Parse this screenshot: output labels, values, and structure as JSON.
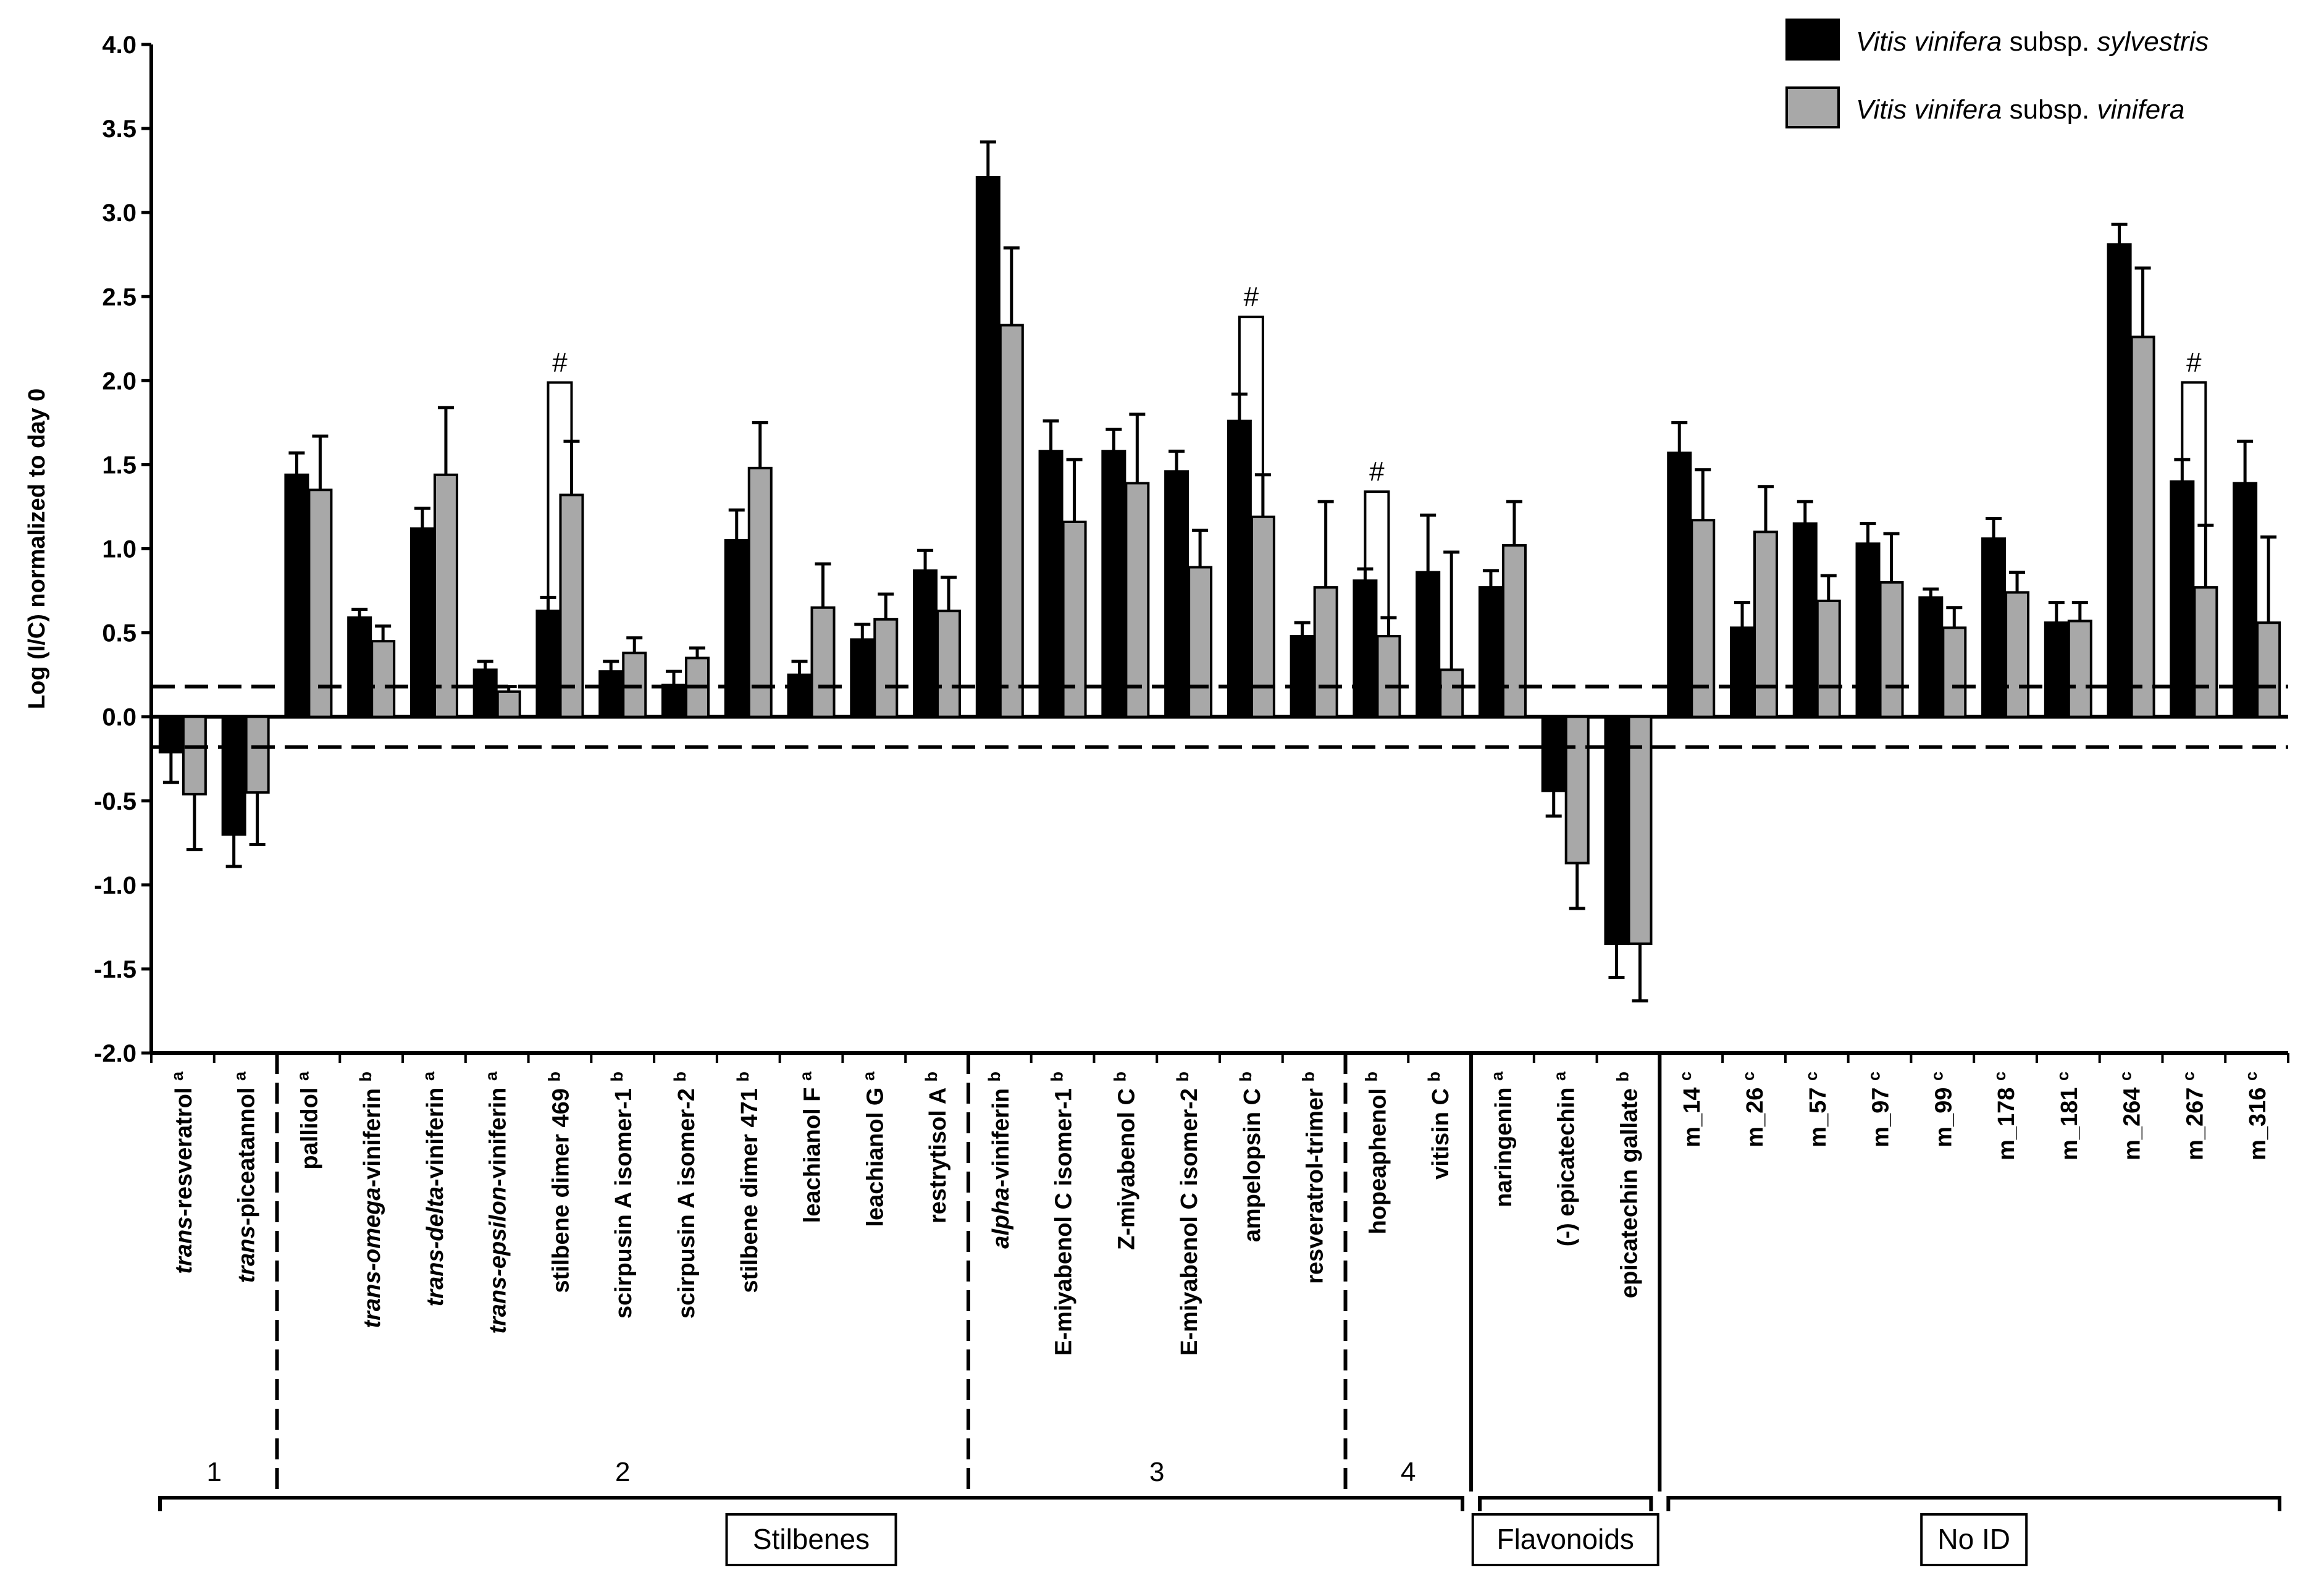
{
  "chart_data": {
    "type": "bar",
    "ylabel": "Log (I/C) normalized to day 0",
    "ylim": [
      -2.0,
      4.0
    ],
    "yticks": [
      "4.0",
      "3.5",
      "3.0",
      "2.5",
      "2.0",
      "1.5",
      "1.0",
      "0.5",
      "0.0",
      "-0.5",
      "-1.0",
      "-1.5",
      "-2.0"
    ],
    "threshold_lines": [
      0.18,
      -0.18
    ],
    "series": [
      {
        "name_italic": "Vitis vinifera",
        "name_rest": " subsp. ",
        "name_italic2": "sylvestris",
        "color": "#000000"
      },
      {
        "name_italic": "Vitis vinifera",
        "name_rest": " subsp. ",
        "name_italic2": "vinifera",
        "color": "#a8a8a8"
      }
    ],
    "categories": [
      {
        "pre": "trans",
        "main": "-resveratrol",
        "sup": "a",
        "values": [
          -0.21,
          -0.46
        ],
        "errors": [
          0.18,
          0.33
        ]
      },
      {
        "pre": "trans",
        "main": "-piceatannol",
        "sup": "a",
        "values": [
          -0.7,
          -0.45
        ],
        "errors": [
          0.19,
          0.31
        ]
      },
      {
        "pre": "",
        "main": "pallidol",
        "sup": "a",
        "values": [
          1.44,
          1.35
        ],
        "errors": [
          0.13,
          0.32
        ]
      },
      {
        "pre": "trans-omega",
        "main": "-viniferin",
        "sup": "b",
        "values": [
          0.59,
          0.45
        ],
        "errors": [
          0.05,
          0.09
        ]
      },
      {
        "pre": "trans-delta",
        "main": "-viniferin",
        "sup": "a",
        "values": [
          1.12,
          1.44
        ],
        "errors": [
          0.12,
          0.4
        ]
      },
      {
        "pre": "trans-epsilon",
        "main": "-viniferin",
        "sup": "a",
        "values": [
          0.28,
          0.15
        ],
        "errors": [
          0.05,
          0.03
        ]
      },
      {
        "pre": "",
        "main": "stilbene dimer 469",
        "sup": "b",
        "values": [
          0.63,
          1.32
        ],
        "errors": [
          0.08,
          0.32
        ],
        "hash": true
      },
      {
        "pre": "",
        "main": "scirpusin A isomer-1",
        "sup": "b",
        "values": [
          0.27,
          0.38
        ],
        "errors": [
          0.06,
          0.09
        ]
      },
      {
        "pre": "",
        "main": "scirpusin A isomer-2",
        "sup": "b",
        "values": [
          0.19,
          0.35
        ],
        "errors": [
          0.08,
          0.06
        ]
      },
      {
        "pre": "",
        "main": "stilbene dimer 471",
        "sup": "b",
        "values": [
          1.05,
          1.48
        ],
        "errors": [
          0.18,
          0.27
        ]
      },
      {
        "pre": "",
        "main": "leachianol F",
        "sup": "a",
        "values": [
          0.25,
          0.65
        ],
        "errors": [
          0.08,
          0.26
        ]
      },
      {
        "pre": "",
        "main": "leachianol G",
        "sup": "a",
        "values": [
          0.46,
          0.58
        ],
        "errors": [
          0.09,
          0.15
        ]
      },
      {
        "pre": "",
        "main": "restrytisol A",
        "sup": "b",
        "values": [
          0.87,
          0.63
        ],
        "errors": [
          0.12,
          0.2
        ]
      },
      {
        "pre": "alpha",
        "main": "-viniferin",
        "sup": "b",
        "values": [
          3.21,
          2.33
        ],
        "errors": [
          0.21,
          0.46
        ]
      },
      {
        "pre": "",
        "main": "E-miyabenol C isomer-1",
        "sup": "b",
        "values": [
          1.58,
          1.16
        ],
        "errors": [
          0.18,
          0.37
        ]
      },
      {
        "pre": "",
        "main": "Z-miyabenol C",
        "sup": "b",
        "values": [
          1.58,
          1.39
        ],
        "errors": [
          0.13,
          0.41
        ]
      },
      {
        "pre": "",
        "main": "E-miyabenol C isomer-2",
        "sup": "b",
        "values": [
          1.46,
          0.89
        ],
        "errors": [
          0.12,
          0.22
        ]
      },
      {
        "pre": "",
        "main": "ampelopsin C",
        "sup": "b",
        "values": [
          1.76,
          1.19
        ],
        "errors": [
          0.16,
          0.25
        ],
        "hash": true
      },
      {
        "pre": "",
        "main": "resveratrol-trimer",
        "sup": "b",
        "values": [
          0.48,
          0.77
        ],
        "errors": [
          0.08,
          0.51
        ]
      },
      {
        "pre": "",
        "main": "hopeaphenol",
        "sup": "b",
        "values": [
          0.81,
          0.48
        ],
        "errors": [
          0.07,
          0.11
        ],
        "hash": true
      },
      {
        "pre": "",
        "main": "vitisin C",
        "sup": "b",
        "values": [
          0.86,
          0.28
        ],
        "errors": [
          0.34,
          0.7
        ]
      },
      {
        "pre": "",
        "main": "naringenin",
        "sup": "a",
        "values": [
          0.77,
          1.02
        ],
        "errors": [
          0.1,
          0.26
        ]
      },
      {
        "pre": "",
        "main": "(-) epicatechin",
        "sup": "a",
        "values": [
          -0.44,
          -0.87
        ],
        "errors": [
          0.15,
          0.27
        ]
      },
      {
        "pre": "",
        "main": "epicatechin gallate",
        "sup": "b",
        "values": [
          -1.35,
          -1.35
        ],
        "errors": [
          0.2,
          0.34
        ]
      },
      {
        "pre": "",
        "main": "m_14",
        "sup": "c",
        "values": [
          1.57,
          1.17
        ],
        "errors": [
          0.18,
          0.3
        ]
      },
      {
        "pre": "",
        "main": "m_26",
        "sup": "c",
        "values": [
          0.53,
          1.1
        ],
        "errors": [
          0.15,
          0.27
        ]
      },
      {
        "pre": "",
        "main": "m_57",
        "sup": "c",
        "values": [
          1.15,
          0.69
        ],
        "errors": [
          0.13,
          0.15
        ]
      },
      {
        "pre": "",
        "main": "m_97",
        "sup": "c",
        "values": [
          1.03,
          0.8
        ],
        "errors": [
          0.12,
          0.29
        ]
      },
      {
        "pre": "",
        "main": "m_99",
        "sup": "c",
        "values": [
          0.71,
          0.53
        ],
        "errors": [
          0.05,
          0.12
        ]
      },
      {
        "pre": "",
        "main": "m_178",
        "sup": "c",
        "values": [
          1.06,
          0.74
        ],
        "errors": [
          0.12,
          0.12
        ]
      },
      {
        "pre": "",
        "main": "m_181",
        "sup": "c",
        "values": [
          0.56,
          0.57
        ],
        "errors": [
          0.12,
          0.11
        ]
      },
      {
        "pre": "",
        "main": "m_264",
        "sup": "c",
        "values": [
          2.81,
          2.26
        ],
        "errors": [
          0.12,
          0.41
        ]
      },
      {
        "pre": "",
        "main": "m_267",
        "sup": "c",
        "values": [
          1.4,
          0.77
        ],
        "errors": [
          0.13,
          0.37
        ],
        "hash": true
      },
      {
        "pre": "",
        "main": "m_316",
        "sup": "c",
        "values": [
          1.39,
          0.56
        ],
        "errors": [
          0.25,
          0.51
        ]
      }
    ],
    "subgroups": [
      {
        "label": "1",
        "from": 0,
        "to": 1,
        "dashed_end": true
      },
      {
        "label": "2",
        "from": 2,
        "to": 12,
        "dashed_end": true
      },
      {
        "label": "3",
        "from": 13,
        "to": 18,
        "dashed_end": true
      },
      {
        "label": "4",
        "from": 19,
        "to": 20,
        "dashed_end": false
      }
    ],
    "classes": [
      {
        "label": "Stilbenes",
        "from": 0,
        "to": 20
      },
      {
        "label": "Flavonoids",
        "from": 21,
        "to": 23
      },
      {
        "label": "No ID",
        "from": 24,
        "to": 33
      }
    ],
    "significance_marker": "#"
  }
}
